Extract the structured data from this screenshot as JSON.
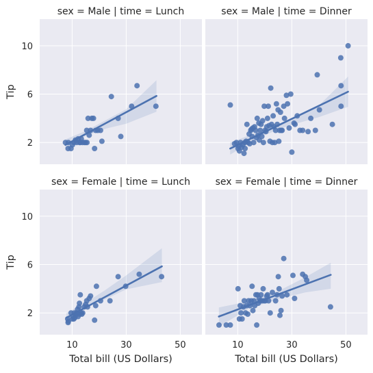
{
  "chart_data": {
    "type": "scatter",
    "facets": [
      {
        "title": "sex = Male | time = Lunch",
        "points": [
          [
            7.51,
            2.0
          ],
          [
            8.5,
            1.5
          ],
          [
            8.6,
            2.0
          ],
          [
            9.6,
            1.5
          ],
          [
            10.1,
            1.8
          ],
          [
            10.7,
            2.0
          ],
          [
            11.2,
            2.2
          ],
          [
            11.7,
            2.0
          ],
          [
            12.2,
            2.3
          ],
          [
            12.7,
            2.0
          ],
          [
            13.0,
            2.0
          ],
          [
            13.4,
            2.3
          ],
          [
            13.8,
            2.0
          ],
          [
            14.5,
            2.0
          ],
          [
            15.0,
            2.0
          ],
          [
            15.5,
            2.0
          ],
          [
            15.4,
            3.0
          ],
          [
            15.9,
            4.0
          ],
          [
            16.3,
            2.6
          ],
          [
            16.8,
            3.0
          ],
          [
            17.3,
            4.0
          ],
          [
            17.9,
            4.0
          ],
          [
            18.3,
            1.5
          ],
          [
            18.7,
            3.0
          ],
          [
            19.5,
            3.0
          ],
          [
            20.5,
            3.0
          ],
          [
            21.0,
            2.1
          ],
          [
            24.5,
            5.8
          ],
          [
            27.0,
            4.0
          ],
          [
            28.0,
            2.5
          ],
          [
            32.0,
            5.0
          ],
          [
            34.0,
            6.7
          ],
          [
            41.0,
            5.0
          ]
        ],
        "fit": {
          "x": [
            7.5,
            41.2
          ],
          "y": [
            1.8,
            5.85
          ]
        },
        "band": {
          "x": [
            7.5,
            15,
            22.5,
            30,
            41.2
          ],
          "lo": [
            1.35,
            2.55,
            3.15,
            3.55,
            4.55
          ],
          "hi": [
            2.25,
            2.95,
            3.85,
            4.75,
            7.15
          ]
        }
      },
      {
        "title": "sex = Male | time = Dinner",
        "points": [
          [
            7.25,
            5.1
          ],
          [
            8.8,
            1.9
          ],
          [
            9.5,
            2.0
          ],
          [
            10.1,
            1.5
          ],
          [
            10.3,
            1.7
          ],
          [
            10.6,
            1.3
          ],
          [
            11.0,
            2.0
          ],
          [
            11.4,
            1.6
          ],
          [
            11.9,
            1.8
          ],
          [
            12.3,
            1.1
          ],
          [
            12.7,
            1.5
          ],
          [
            12.6,
            2.0
          ],
          [
            13.1,
            2.1
          ],
          [
            13.4,
            3.5
          ],
          [
            13.8,
            2.0
          ],
          [
            14.2,
            2.7
          ],
          [
            14.4,
            1.9
          ],
          [
            14.8,
            3.0
          ],
          [
            15.1,
            3.1
          ],
          [
            15.3,
            2.5
          ],
          [
            15.6,
            3.2
          ],
          [
            15.9,
            2.0
          ],
          [
            16.2,
            3.3
          ],
          [
            16.6,
            3.0
          ],
          [
            16.9,
            2.4
          ],
          [
            17.2,
            4.0
          ],
          [
            17.5,
            2.6
          ],
          [
            17.8,
            3.6
          ],
          [
            18.0,
            2.2
          ],
          [
            18.3,
            3.0
          ],
          [
            18.6,
            3.5
          ],
          [
            18.9,
            2.5
          ],
          [
            19.2,
            3.8
          ],
          [
            19.5,
            2.0
          ],
          [
            19.8,
            5.0
          ],
          [
            20.1,
            3.0
          ],
          [
            20.4,
            2.9
          ],
          [
            20.7,
            3.3
          ],
          [
            21.0,
            4.0
          ],
          [
            21.3,
            5.0
          ],
          [
            21.6,
            3.4
          ],
          [
            21.9,
            2.1
          ],
          [
            22.2,
            6.5
          ],
          [
            22.5,
            3.5
          ],
          [
            22.8,
            2.0
          ],
          [
            23.1,
            4.2
          ],
          [
            23.4,
            3.3
          ],
          [
            23.7,
            2.0
          ],
          [
            24.0,
            3.0
          ],
          [
            24.3,
            5.2
          ],
          [
            24.6,
            3.5
          ],
          [
            24.9,
            4.7
          ],
          [
            25.2,
            2.1
          ],
          [
            25.5,
            3.0
          ],
          [
            25.8,
            4.5
          ],
          [
            26.1,
            3.0
          ],
          [
            26.4,
            3.0
          ],
          [
            27.0,
            5.0
          ],
          [
            27.3,
            4.0
          ],
          [
            28.0,
            5.9
          ],
          [
            28.4,
            5.2
          ],
          [
            29.0,
            3.2
          ],
          [
            29.6,
            6.0
          ],
          [
            30.0,
            1.2
          ],
          [
            30.8,
            3.6
          ],
          [
            31.2,
            3.5
          ],
          [
            32.0,
            4.2
          ],
          [
            33.0,
            3.0
          ],
          [
            34.0,
            3.0
          ],
          [
            36.0,
            2.9
          ],
          [
            37.0,
            4.0
          ],
          [
            38.7,
            3.0
          ],
          [
            39.4,
            7.6
          ],
          [
            40.2,
            4.7
          ],
          [
            45.0,
            3.5
          ],
          [
            48.2,
            5.0
          ],
          [
            48.1,
            9.0
          ],
          [
            48.2,
            6.7
          ],
          [
            50.8,
            10.0
          ]
        ],
        "fit": {
          "x": [
            7.2,
            50.8
          ],
          "y": [
            1.5,
            6.2
          ]
        },
        "band": {
          "x": [
            7.2,
            18,
            29,
            40,
            50.8
          ],
          "lo": [
            1.0,
            2.45,
            3.4,
            4.1,
            4.95
          ],
          "hi": [
            2.0,
            2.9,
            3.75,
            5.05,
            7.45
          ]
        }
      },
      {
        "title": "sex = Female | time = Lunch",
        "points": [
          [
            8.35,
            1.5
          ],
          [
            8.5,
            1.2
          ],
          [
            8.6,
            1.3
          ],
          [
            9.6,
            2.0
          ],
          [
            10.1,
            1.5
          ],
          [
            10.3,
            1.7
          ],
          [
            10.6,
            1.5
          ],
          [
            10.8,
            2.0
          ],
          [
            11.0,
            1.6
          ],
          [
            11.4,
            1.8
          ],
          [
            11.6,
            2.0
          ],
          [
            12.0,
            2.3
          ],
          [
            12.2,
            1.7
          ],
          [
            12.5,
            2.5
          ],
          [
            12.7,
            2.8
          ],
          [
            12.8,
            1.9
          ],
          [
            13.0,
            3.5
          ],
          [
            13.3,
            2.0
          ],
          [
            13.6,
            1.9
          ],
          [
            13.9,
            2.0
          ],
          [
            14.5,
            2.5
          ],
          [
            15.0,
            2.7
          ],
          [
            15.4,
            3.0
          ],
          [
            15.7,
            2.5
          ],
          [
            16.3,
            3.2
          ],
          [
            16.8,
            3.4
          ],
          [
            18.3,
            1.4
          ],
          [
            18.7,
            2.6
          ],
          [
            19.0,
            4.2
          ],
          [
            20.5,
            3.0
          ],
          [
            24.0,
            3.0
          ],
          [
            27.0,
            5.0
          ],
          [
            29.8,
            4.2
          ],
          [
            34.8,
            5.2
          ],
          [
            43.1,
            5.0
          ]
        ],
        "fit": {
          "x": [
            7.9,
            43.2
          ],
          "y": [
            1.6,
            5.85
          ]
        },
        "band": {
          "x": [
            7.9,
            15,
            22,
            30,
            43.2
          ],
          "lo": [
            1.25,
            2.45,
            3.1,
            3.95,
            4.55
          ],
          "hi": [
            2.0,
            2.85,
            3.85,
            5.1,
            7.35
          ]
        }
      },
      {
        "title": "sex = Female | time = Dinner",
        "points": [
          [
            3.07,
            1.0
          ],
          [
            5.75,
            1.0
          ],
          [
            7.25,
            1.0
          ],
          [
            10.1,
            4.0
          ],
          [
            10.6,
            1.5
          ],
          [
            10.9,
            2.6
          ],
          [
            11.2,
            2.0
          ],
          [
            11.6,
            1.5
          ],
          [
            12.1,
            2.5
          ],
          [
            12.4,
            3.0
          ],
          [
            12.9,
            2.0
          ],
          [
            13.3,
            2.6
          ],
          [
            13.7,
            1.9
          ],
          [
            14.0,
            3.0
          ],
          [
            14.5,
            2.6
          ],
          [
            15.0,
            3.0
          ],
          [
            15.3,
            4.2
          ],
          [
            15.6,
            2.2
          ],
          [
            16.0,
            3.0
          ],
          [
            16.3,
            2.6
          ],
          [
            16.7,
            3.5
          ],
          [
            17.0,
            1.0
          ],
          [
            17.3,
            3.5
          ],
          [
            17.6,
            2.8
          ],
          [
            17.9,
            3.2
          ],
          [
            18.3,
            3.0
          ],
          [
            18.6,
            3.5
          ],
          [
            19.0,
            3.0
          ],
          [
            19.4,
            4.0
          ],
          [
            19.8,
            3.0
          ],
          [
            20.2,
            3.0
          ],
          [
            20.7,
            3.4
          ],
          [
            21.0,
            3.5
          ],
          [
            21.4,
            3.0
          ],
          [
            22.0,
            2.0
          ],
          [
            22.8,
            3.7
          ],
          [
            24.0,
            3.0
          ],
          [
            24.5,
            3.5
          ],
          [
            25.0,
            5.0
          ],
          [
            25.3,
            4.0
          ],
          [
            25.6,
            1.8
          ],
          [
            26.0,
            2.2
          ],
          [
            26.4,
            3.4
          ],
          [
            27.0,
            6.5
          ],
          [
            28.2,
            3.5
          ],
          [
            30.4,
            5.1
          ],
          [
            31.0,
            3.2
          ],
          [
            34.0,
            5.2
          ],
          [
            35.0,
            5.0
          ],
          [
            35.5,
            4.7
          ],
          [
            44.3,
            2.5
          ]
        ],
        "fit": {
          "x": [
            3.0,
            44.4
          ],
          "y": [
            1.7,
            5.15
          ]
        },
        "band": {
          "x": [
            3.0,
            14,
            25,
            35,
            44.4
          ],
          "lo": [
            0.85,
            2.35,
            3.15,
            3.7,
            4.0
          ],
          "hi": [
            2.45,
            2.95,
            3.8,
            4.95,
            6.15
          ]
        }
      }
    ],
    "xlim": [
      -2,
      58
    ],
    "ylim": [
      0.2,
      12.2
    ],
    "xticks": [
      10,
      30,
      50
    ],
    "yticks": [
      2,
      6,
      10
    ],
    "xlabel": "Total bill (US Dollars)",
    "ylabel": "Tip",
    "grid": true
  },
  "colors": {
    "background": "#eaeaf2",
    "series": "#4c72b0",
    "grid": "#ffffff"
  }
}
